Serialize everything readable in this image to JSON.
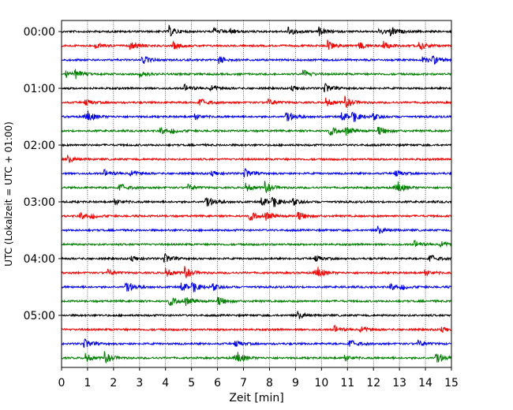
{
  "chart_data": {
    "type": "line",
    "title": "",
    "xlabel": "Zeit  [min]",
    "ylabel": "UTC (Lokalzeit = UTC + 01:00)",
    "xlim": [
      0,
      15
    ],
    "x_ticks": [
      0,
      1,
      2,
      3,
      4,
      5,
      6,
      7,
      8,
      9,
      10,
      11,
      12,
      13,
      14,
      15
    ],
    "x_tick_labels": [
      "0",
      "1",
      "2",
      "3",
      "4",
      "5",
      "6",
      "7",
      "8",
      "9",
      "10",
      "11",
      "12",
      "13",
      "14",
      "15"
    ],
    "y_tick_labels": [
      "00:00",
      "01:00",
      "02:00",
      "03:00",
      "04:00",
      "05:00"
    ],
    "grid": "vertical dotted",
    "trace_interval_min": 15,
    "traces_per_hour": 4,
    "trace_colors": [
      "#000000",
      "#ff0000",
      "#0000ff",
      "#008000"
    ],
    "series": [
      {
        "start": "00:00",
        "color": "#000000"
      },
      {
        "start": "00:15",
        "color": "#ff0000"
      },
      {
        "start": "00:30",
        "color": "#0000ff"
      },
      {
        "start": "00:45",
        "color": "#008000"
      },
      {
        "start": "01:00",
        "color": "#000000"
      },
      {
        "start": "01:15",
        "color": "#ff0000"
      },
      {
        "start": "01:30",
        "color": "#0000ff"
      },
      {
        "start": "01:45",
        "color": "#008000"
      },
      {
        "start": "02:00",
        "color": "#000000"
      },
      {
        "start": "02:15",
        "color": "#ff0000"
      },
      {
        "start": "02:30",
        "color": "#0000ff"
      },
      {
        "start": "02:45",
        "color": "#008000"
      },
      {
        "start": "03:00",
        "color": "#000000"
      },
      {
        "start": "03:15",
        "color": "#ff0000"
      },
      {
        "start": "03:30",
        "color": "#0000ff"
      },
      {
        "start": "03:45",
        "color": "#008000"
      },
      {
        "start": "04:00",
        "color": "#000000"
      },
      {
        "start": "04:15",
        "color": "#ff0000"
      },
      {
        "start": "04:30",
        "color": "#0000ff"
      },
      {
        "start": "04:45",
        "color": "#008000"
      },
      {
        "start": "05:00",
        "color": "#000000"
      },
      {
        "start": "05:15",
        "color": "#ff0000"
      },
      {
        "start": "05:30",
        "color": "#0000ff"
      },
      {
        "start": "05:45",
        "color": "#008000"
      }
    ]
  }
}
